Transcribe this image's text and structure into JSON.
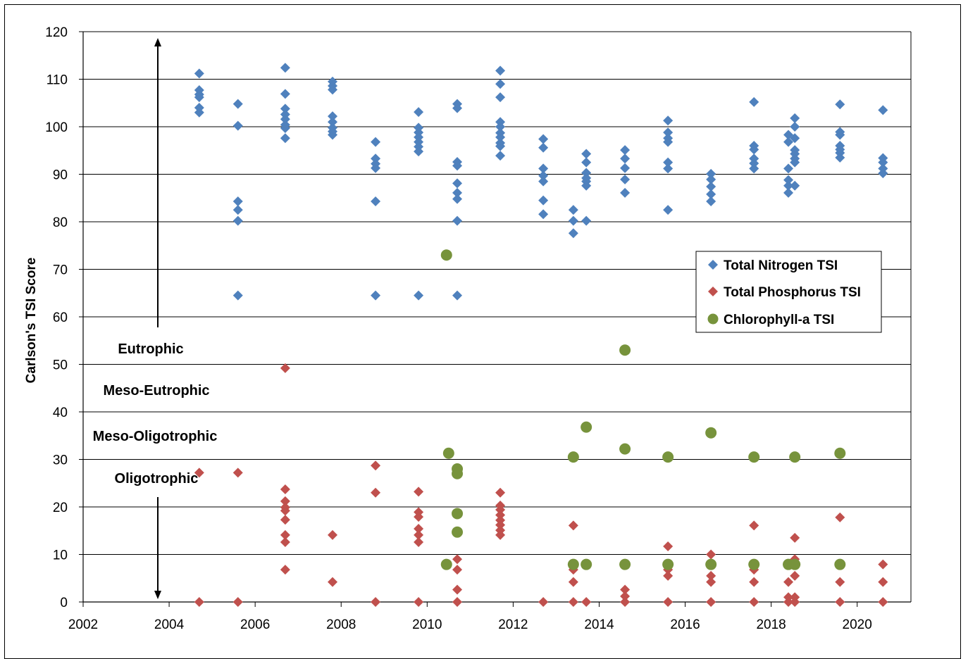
{
  "chart_data": {
    "type": "scatter",
    "title": "",
    "xlabel": "",
    "ylabel": "Carlson's TSI Score",
    "xlim": [
      2002,
      2021.25
    ],
    "ylim": [
      0,
      120
    ],
    "x_ticks": [
      "2002",
      "2004",
      "2006",
      "2008",
      "2010",
      "2012",
      "2014",
      "2016",
      "2018",
      "2020"
    ],
    "y_ticks": [
      "0",
      "10",
      "20",
      "30",
      "40",
      "50",
      "60",
      "70",
      "80",
      "90",
      "100",
      "110",
      "120"
    ],
    "grid": "horizontal",
    "legend_position": "right",
    "zones": [
      "Eutrophic",
      "Meso-Eutrophic",
      "Meso-Oligotrophic",
      "Oligotrophic"
    ],
    "series": [
      {
        "name": "Total Nitrogen TSI",
        "color": "#4F81BD",
        "marker": "diamond",
        "points": [
          [
            2004.7,
            111.2
          ],
          [
            2004.7,
            107.7
          ],
          [
            2004.7,
            106.8
          ],
          [
            2004.7,
            106.2
          ],
          [
            2004.7,
            104
          ],
          [
            2004.7,
            103
          ],
          [
            2005.6,
            104.8
          ],
          [
            2005.6,
            100.2
          ],
          [
            2005.6,
            84.3
          ],
          [
            2005.6,
            82.5
          ],
          [
            2005.6,
            80.2
          ],
          [
            2005.6,
            64.5
          ],
          [
            2006.7,
            112.4
          ],
          [
            2006.7,
            106.9
          ],
          [
            2006.7,
            103.8
          ],
          [
            2006.7,
            102.6
          ],
          [
            2006.7,
            101.6
          ],
          [
            2006.7,
            100.4
          ],
          [
            2006.7,
            99.7
          ],
          [
            2006.7,
            97.6
          ],
          [
            2007.8,
            109.5
          ],
          [
            2007.8,
            108.6
          ],
          [
            2007.8,
            107.8
          ],
          [
            2007.8,
            102.2
          ],
          [
            2007.8,
            101
          ],
          [
            2007.8,
            99.8
          ],
          [
            2007.8,
            99
          ],
          [
            2007.8,
            98.3
          ],
          [
            2008.8,
            96.8
          ],
          [
            2008.8,
            93.3
          ],
          [
            2008.8,
            92.2
          ],
          [
            2008.8,
            91.3
          ],
          [
            2008.8,
            84.3
          ],
          [
            2008.8,
            64.5
          ],
          [
            2009.8,
            103.1
          ],
          [
            2009.8,
            99.8
          ],
          [
            2009.8,
            98.8
          ],
          [
            2009.8,
            97.8
          ],
          [
            2009.8,
            96.8
          ],
          [
            2009.8,
            95.8
          ],
          [
            2009.8,
            94.8
          ],
          [
            2009.8,
            64.5
          ],
          [
            2010.7,
            104.8
          ],
          [
            2010.7,
            103.9
          ],
          [
            2010.7,
            92.6
          ],
          [
            2010.7,
            91.8
          ],
          [
            2010.7,
            88.1
          ],
          [
            2010.7,
            86.1
          ],
          [
            2010.7,
            84.8
          ],
          [
            2010.7,
            80.2
          ],
          [
            2010.7,
            64.5
          ],
          [
            2011.7,
            111.8
          ],
          [
            2011.7,
            109
          ],
          [
            2011.7,
            106.2
          ],
          [
            2011.7,
            101
          ],
          [
            2011.7,
            100
          ],
          [
            2011.7,
            98.7
          ],
          [
            2011.7,
            97.8
          ],
          [
            2011.7,
            96.6
          ],
          [
            2011.7,
            95.9
          ],
          [
            2011.7,
            93.9
          ],
          [
            2012.7,
            97.4
          ],
          [
            2012.7,
            95.6
          ],
          [
            2012.7,
            91.2
          ],
          [
            2012.7,
            89.7
          ],
          [
            2012.7,
            88.5
          ],
          [
            2012.7,
            84.5
          ],
          [
            2012.7,
            81.6
          ],
          [
            2013.4,
            82.5
          ],
          [
            2013.4,
            80.2
          ],
          [
            2013.4,
            77.6
          ],
          [
            2013.7,
            94.3
          ],
          [
            2013.7,
            92.5
          ],
          [
            2013.7,
            90.3
          ],
          [
            2013.7,
            89.2
          ],
          [
            2013.7,
            88.5
          ],
          [
            2013.7,
            87.6
          ],
          [
            2013.7,
            80.2
          ],
          [
            2014.6,
            95.1
          ],
          [
            2014.6,
            93.3
          ],
          [
            2014.6,
            91.3
          ],
          [
            2014.6,
            88.9
          ],
          [
            2014.6,
            86.1
          ],
          [
            2015.6,
            101.3
          ],
          [
            2015.6,
            98.8
          ],
          [
            2015.6,
            97.6
          ],
          [
            2015.6,
            96.8
          ],
          [
            2015.6,
            92.5
          ],
          [
            2015.6,
            91.2
          ],
          [
            2015.6,
            82.5
          ],
          [
            2016.6,
            90.1
          ],
          [
            2016.6,
            88.9
          ],
          [
            2016.6,
            87.4
          ],
          [
            2016.6,
            85.8
          ],
          [
            2016.6,
            84.3
          ],
          [
            2017.6,
            105.2
          ],
          [
            2017.6,
            96
          ],
          [
            2017.6,
            95.2
          ],
          [
            2017.6,
            93.3
          ],
          [
            2017.6,
            92.3
          ],
          [
            2017.6,
            91.2
          ],
          [
            2018.4,
            98.3
          ],
          [
            2018.4,
            96.8
          ],
          [
            2018.4,
            91.2
          ],
          [
            2018.4,
            88.8
          ],
          [
            2018.4,
            87.6
          ],
          [
            2018.4,
            86.1
          ],
          [
            2018.55,
            101.8
          ],
          [
            2018.55,
            100
          ],
          [
            2018.55,
            97.6
          ],
          [
            2018.55,
            95.1
          ],
          [
            2018.55,
            94.3
          ],
          [
            2018.55,
            93.3
          ],
          [
            2018.55,
            92.5
          ],
          [
            2018.55,
            87.6
          ],
          [
            2019.6,
            104.7
          ],
          [
            2019.6,
            98.9
          ],
          [
            2019.6,
            98.3
          ],
          [
            2019.6,
            96
          ],
          [
            2019.6,
            95.2
          ],
          [
            2019.6,
            94.5
          ],
          [
            2019.6,
            93.5
          ],
          [
            2020.6,
            103.5
          ],
          [
            2020.6,
            93.4
          ],
          [
            2020.6,
            92.5
          ],
          [
            2020.6,
            91.2
          ],
          [
            2020.6,
            90.2
          ]
        ]
      },
      {
        "name": "Total Phosphorus TSI",
        "color": "#C0504D",
        "marker": "diamond",
        "points": [
          [
            2004.7,
            27.2
          ],
          [
            2004.7,
            0
          ],
          [
            2005.6,
            27.2
          ],
          [
            2005.6,
            0
          ],
          [
            2006.7,
            49.2
          ],
          [
            2006.7,
            23.7
          ],
          [
            2006.7,
            21.2
          ],
          [
            2006.7,
            19.9
          ],
          [
            2006.7,
            19.2
          ],
          [
            2006.7,
            17.3
          ],
          [
            2006.7,
            14.1
          ],
          [
            2006.7,
            12.6
          ],
          [
            2006.7,
            6.8
          ],
          [
            2007.8,
            14.1
          ],
          [
            2007.8,
            4.2
          ],
          [
            2008.8,
            28.7
          ],
          [
            2008.8,
            23
          ],
          [
            2008.8,
            0
          ],
          [
            2009.8,
            23.2
          ],
          [
            2009.8,
            18.9
          ],
          [
            2009.8,
            17.9
          ],
          [
            2009.8,
            15.4
          ],
          [
            2009.8,
            14.1
          ],
          [
            2009.8,
            12.6
          ],
          [
            2009.8,
            0
          ],
          [
            2010.7,
            9
          ],
          [
            2010.7,
            6.8
          ],
          [
            2010.7,
            2.6
          ],
          [
            2010.7,
            0
          ],
          [
            2011.7,
            23
          ],
          [
            2011.7,
            20.3
          ],
          [
            2011.7,
            19.4
          ],
          [
            2011.7,
            18.3
          ],
          [
            2011.7,
            17.2
          ],
          [
            2011.7,
            16.2
          ],
          [
            2011.7,
            15.1
          ],
          [
            2011.7,
            14.1
          ],
          [
            2012.7,
            0
          ],
          [
            2013.4,
            16.1
          ],
          [
            2013.4,
            6.8
          ],
          [
            2013.4,
            4.2
          ],
          [
            2013.4,
            0
          ],
          [
            2013.7,
            0
          ],
          [
            2014.6,
            2.6
          ],
          [
            2014.6,
            1.2
          ],
          [
            2014.6,
            0
          ],
          [
            2015.6,
            11.7
          ],
          [
            2015.6,
            6.8
          ],
          [
            2015.6,
            5.5
          ],
          [
            2015.6,
            0
          ],
          [
            2016.6,
            10
          ],
          [
            2016.6,
            5.5
          ],
          [
            2016.6,
            4.2
          ],
          [
            2016.6,
            0
          ],
          [
            2017.6,
            16.1
          ],
          [
            2017.6,
            6.8
          ],
          [
            2017.6,
            4.2
          ],
          [
            2017.6,
            0
          ],
          [
            2018.4,
            4.2
          ],
          [
            2018.4,
            1
          ],
          [
            2018.4,
            0
          ],
          [
            2018.55,
            13.5
          ],
          [
            2018.55,
            9
          ],
          [
            2018.55,
            5.5
          ],
          [
            2018.55,
            1
          ],
          [
            2018.55,
            0
          ],
          [
            2019.6,
            17.8
          ],
          [
            2019.6,
            4.2
          ],
          [
            2019.6,
            0
          ],
          [
            2020.6,
            7.9
          ],
          [
            2020.6,
            4.2
          ],
          [
            2020.6,
            0
          ]
        ]
      },
      {
        "name": "Chlorophyll-a TSI",
        "color": "#77933C",
        "marker": "circle",
        "points": [
          [
            2010.45,
            73
          ],
          [
            2010.5,
            31.3
          ],
          [
            2010.45,
            7.9
          ],
          [
            2010.7,
            28
          ],
          [
            2010.7,
            27
          ],
          [
            2010.7,
            18.6
          ],
          [
            2010.7,
            14.7
          ],
          [
            2013.4,
            30.5
          ],
          [
            2013.4,
            7.9
          ],
          [
            2013.7,
            36.8
          ],
          [
            2013.7,
            7.9
          ],
          [
            2014.6,
            53
          ],
          [
            2014.6,
            32.2
          ],
          [
            2014.6,
            7.9
          ],
          [
            2015.6,
            30.5
          ],
          [
            2015.6,
            7.9
          ],
          [
            2016.6,
            35.6
          ],
          [
            2016.6,
            7.9
          ],
          [
            2017.6,
            30.5
          ],
          [
            2017.6,
            7.9
          ],
          [
            2018.4,
            7.9
          ],
          [
            2018.55,
            30.5
          ],
          [
            2018.55,
            7.9
          ],
          [
            2019.6,
            31.3
          ],
          [
            2019.6,
            7.9
          ]
        ]
      }
    ]
  }
}
